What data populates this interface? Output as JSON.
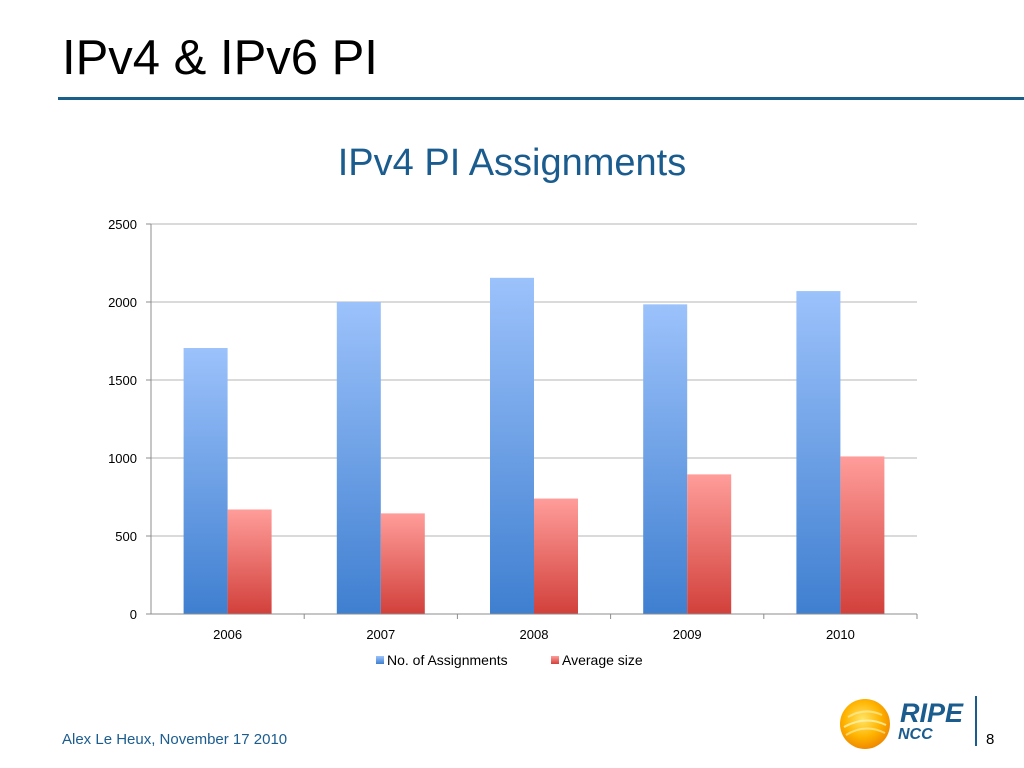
{
  "slide": {
    "title": "IPv4 & IPv6 PI",
    "footer": "Alex Le Heux, November 17 2010",
    "page_number": "8",
    "logo": {
      "name": "RIPE",
      "sub": "NCC"
    }
  },
  "colors": {
    "title_rule": "#1a5f89",
    "accent_text": "#1b5c8f",
    "series_blue_top": "#9cc2fb",
    "series_blue_bottom": "#3f7fd0",
    "series_red_top": "#ff9d9a",
    "series_red_bottom": "#d2403b",
    "gridline": "#b5b5b5"
  },
  "chart_data": {
    "type": "bar",
    "title": "IPv4 PI Assignments",
    "xlabel": "",
    "ylabel": "",
    "categories": [
      "2006",
      "2007",
      "2008",
      "2009",
      "2010"
    ],
    "series": [
      {
        "name": "No. of Assignments",
        "values": [
          1705,
          2000,
          2155,
          1985,
          2070
        ]
      },
      {
        "name": "Average size",
        "values": [
          670,
          645,
          740,
          895,
          1010
        ]
      }
    ],
    "ylim": [
      0,
      2500
    ],
    "yticks": [
      0,
      500,
      1000,
      1500,
      2000,
      2500
    ],
    "grid": true,
    "legend": "bottom"
  }
}
